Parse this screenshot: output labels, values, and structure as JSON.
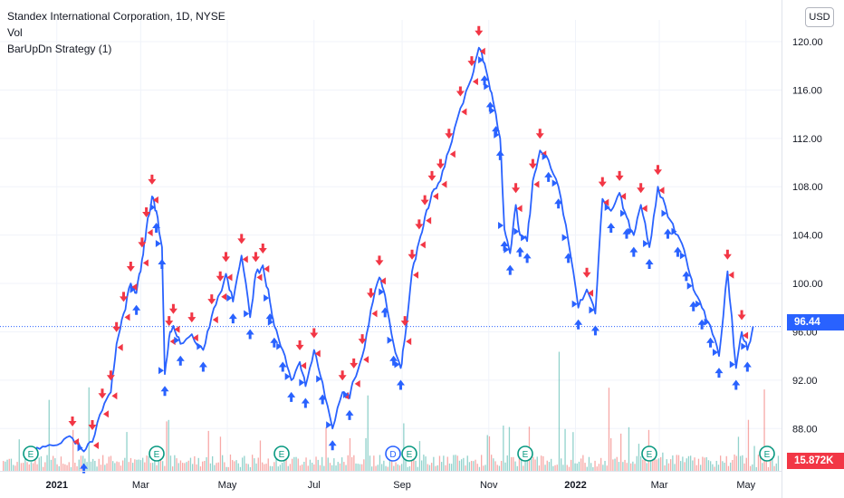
{
  "header": {
    "symbol_title": "Standex International Corporation, 1D, NYSE",
    "volume_label": "Vol",
    "strategy_label": "BarUpDn Strategy (1)"
  },
  "toolbar": {
    "currency_label": "USD"
  },
  "price_scale": {
    "last_price_label": "96.44",
    "volume_label": "15.872K"
  },
  "colors": {
    "price_line": "#2962ff",
    "buy_arrow": "#2962ff",
    "sell_arrow": "#f23645",
    "volume_up": "#26a69a",
    "volume_down": "#ef5350",
    "earnings_marker": "#089981",
    "dividend_marker": "#2962ff"
  },
  "chart_data": {
    "type": "line",
    "title": "Standex International Corporation, 1D, NYSE",
    "xlabel": "",
    "ylabel": "",
    "ylim": [
      84.5,
      121.8
    ],
    "y_ticks": [
      88,
      92,
      96,
      100,
      104,
      108,
      112,
      116,
      120
    ],
    "y_tick_labels": [
      "88.00",
      "92.00",
      "96.00",
      "100.00",
      "104.00",
      "108.00",
      "112.00",
      "116.00",
      "120.00"
    ],
    "x_tick_labels": [
      "2021",
      "Mar",
      "May",
      "Jul",
      "Sep",
      "Nov",
      "2022",
      "Mar",
      "May"
    ],
    "x_tick_dates": [
      "2021-01-01",
      "2021-03-01",
      "2021-05-01",
      "2021-07-01",
      "2021-09-01",
      "2021-11-01",
      "2022-01-01",
      "2022-03-01",
      "2022-05-01"
    ],
    "last_price": 96.44,
    "current_volume": "15.872K",
    "grid": true,
    "series": [
      {
        "name": "",
        "x": [
          "2020-12-16",
          "2020-12-24",
          "2021-01-04",
          "2021-01-12",
          "2021-01-20",
          "2021-01-26",
          "2021-02-02",
          "2021-02-08",
          "2021-02-12",
          "2021-02-17",
          "2021-02-22",
          "2021-02-26",
          "2021-03-02",
          "2021-03-05",
          "2021-03-09",
          "2021-03-12",
          "2021-03-16",
          "2021-03-18",
          "2021-03-21",
          "2021-03-24",
          "2021-03-29",
          "2021-04-06",
          "2021-04-14",
          "2021-04-20",
          "2021-04-26",
          "2021-04-30",
          "2021-05-05",
          "2021-05-11",
          "2021-05-17",
          "2021-05-21",
          "2021-05-26",
          "2021-05-31",
          "2021-06-03",
          "2021-06-09",
          "2021-06-15",
          "2021-06-21",
          "2021-06-25",
          "2021-07-01",
          "2021-07-07",
          "2021-07-14",
          "2021-07-21",
          "2021-07-26",
          "2021-07-29",
          "2021-08-04",
          "2021-08-10",
          "2021-08-16",
          "2021-08-20",
          "2021-08-26",
          "2021-08-31",
          "2021-09-03",
          "2021-09-08",
          "2021-09-13",
          "2021-09-17",
          "2021-09-22",
          "2021-09-28",
          "2021-10-04",
          "2021-10-12",
          "2021-10-20",
          "2021-10-25",
          "2021-10-29",
          "2021-11-02",
          "2021-11-06",
          "2021-11-09",
          "2021-11-12",
          "2021-11-16",
          "2021-11-20",
          "2021-11-23",
          "2021-11-28",
          "2021-12-02",
          "2021-12-07",
          "2021-12-13",
          "2021-12-20",
          "2021-12-27",
          "2022-01-03",
          "2022-01-09",
          "2022-01-15",
          "2022-01-20",
          "2022-01-26",
          "2022-02-01",
          "2022-02-06",
          "2022-02-11",
          "2022-02-16",
          "2022-02-22",
          "2022-02-28",
          "2022-03-07",
          "2022-03-14",
          "2022-03-20",
          "2022-03-25",
          "2022-03-31",
          "2022-04-06",
          "2022-04-12",
          "2022-04-18",
          "2022-04-24",
          "2022-04-28",
          "2022-05-02",
          "2022-05-06"
        ],
        "y": [
          86.0,
          86.5,
          86.8,
          87.2,
          86.1,
          86.9,
          89.5,
          91.0,
          95.0,
          97.5,
          100.0,
          99.2,
          102.0,
          104.5,
          107.2,
          106.0,
          103.0,
          92.5,
          95.5,
          96.5,
          95.0,
          95.8,
          94.5,
          97.3,
          99.2,
          100.8,
          98.5,
          102.3,
          97.2,
          100.8,
          101.5,
          98.5,
          96.5,
          94.5,
          92.0,
          93.5,
          91.5,
          94.5,
          91.8,
          88.0,
          91.0,
          90.5,
          92.0,
          94.0,
          97.8,
          100.5,
          99.0,
          95.0,
          93.0,
          95.5,
          101.0,
          103.5,
          105.5,
          107.5,
          108.5,
          111.0,
          114.5,
          117.0,
          119.5,
          118.2,
          116.0,
          114.0,
          112.0,
          104.5,
          102.5,
          106.5,
          104.0,
          103.5,
          108.5,
          111.0,
          110.2,
          108.0,
          103.5,
          98.0,
          99.5,
          97.5,
          107.0,
          106.0,
          107.5,
          105.5,
          104.0,
          106.5,
          103.0,
          108.0,
          105.5,
          104.0,
          102.0,
          99.5,
          98.0,
          96.5,
          94.0,
          101.0,
          93.0,
          96.0,
          94.5,
          96.44
        ]
      }
    ]
  }
}
